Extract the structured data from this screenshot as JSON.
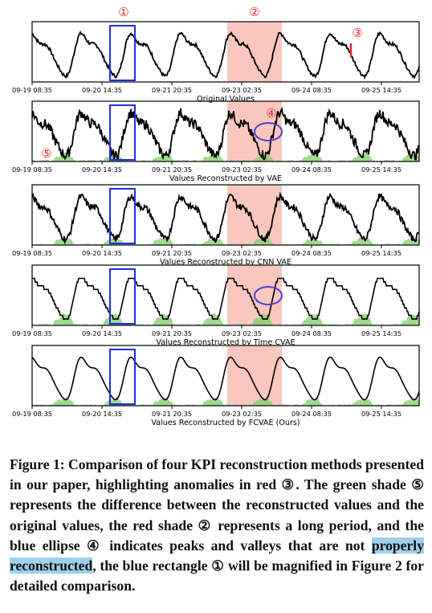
{
  "figure": {
    "panels": [
      {
        "id": "original",
        "title": "Original Values",
        "anomaly_spike": true,
        "has_green": false,
        "style": "original"
      },
      {
        "id": "vae",
        "title": "Values Reconstructed by VAE",
        "has_green": true,
        "style": "noisy"
      },
      {
        "id": "cnn_vae",
        "title": "Values Reconstructed by CNN VAE",
        "has_green": true,
        "style": "noisy"
      },
      {
        "id": "time_cvae",
        "title": "Values Reconstructed by Time CVAE",
        "has_green": true,
        "style": "stepped"
      },
      {
        "id": "fcvae",
        "title": "Values Reconstructed by FCVAE (Ours)",
        "has_green": true,
        "style": "smooth"
      }
    ],
    "tick_labels": [
      "09-19 08:35",
      "09-20 14:35",
      "09-21 20:35",
      "09-23 02:35",
      "09-24 08:35",
      "09-25 14:35"
    ],
    "markers": {
      "m1": "①",
      "m2": "②",
      "m3": "③",
      "m4": "④",
      "m5": "⑤"
    },
    "colors": {
      "series": "#000000",
      "anomaly": "#e8232a",
      "long_period": "#f9c7bd",
      "green": "#7fcc6a",
      "rect": "#1f2fe0",
      "ellipse": "#4a3fd6",
      "marker": "#e8232a"
    }
  },
  "caption": {
    "part1": "Figure 1: Comparison of four KPI reconstruction methods presented in our paper, highlighting anomalies in red ③. The green shade ⑤ represents the difference between the reconstructed values and the original values, the red shade ② represents a long period, and the blue ellipse ④ indicates peaks and valleys that are not ",
    "highlight": "properly reconstructed",
    "part2": ", the blue rectangle ① will be magnified in Figure 2 for detailed comparison."
  }
}
